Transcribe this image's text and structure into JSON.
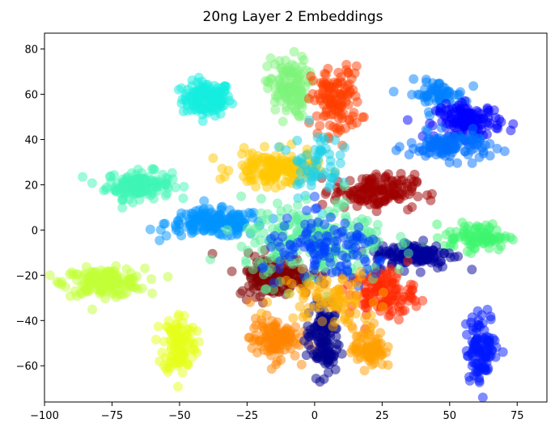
{
  "chart_data": {
    "type": "scatter",
    "title": "20ng Layer 2 Embeddings",
    "xlabel": "",
    "ylabel": "",
    "xlim": [
      -100,
      86
    ],
    "ylim": [
      -76,
      87
    ],
    "xticks": [
      -100,
      -75,
      -50,
      -25,
      0,
      25,
      50,
      75
    ],
    "yticks": [
      -60,
      -40,
      -20,
      0,
      20,
      40,
      60,
      80
    ],
    "grid": false,
    "legend": "none",
    "point_alpha": 0.5,
    "clusters": [
      {
        "color": "#13eee0",
        "center": [
          -40,
          58
        ],
        "spread": [
          6,
          5
        ],
        "n": 140
      },
      {
        "color": "#3df5b6",
        "center": [
          -65,
          20
        ],
        "spread": [
          8,
          4
        ],
        "n": 150
      },
      {
        "color": "#0094ff",
        "center": [
          -37,
          3
        ],
        "spread": [
          12,
          4
        ],
        "n": 170
      },
      {
        "color": "#c2ff36",
        "center": [
          -78,
          -23
        ],
        "spread": [
          10,
          4
        ],
        "n": 150
      },
      {
        "color": "#e5ff1a",
        "center": [
          -50,
          -50
        ],
        "spread": [
          4,
          9
        ],
        "n": 120
      },
      {
        "color": "#7ef37a",
        "center": [
          -10,
          63
        ],
        "spread": [
          5,
          9
        ],
        "n": 120
      },
      {
        "color": "#ff3d00",
        "center": [
          8,
          57
        ],
        "spread": [
          6,
          10
        ],
        "n": 120
      },
      {
        "color": "#0080ff",
        "center": [
          45,
          60
        ],
        "spread": [
          7,
          4
        ],
        "n": 60
      },
      {
        "color": "#0000ff",
        "center": [
          57,
          48
        ],
        "spread": [
          8,
          5
        ],
        "n": 140
      },
      {
        "color": "#0070ff",
        "center": [
          50,
          37
        ],
        "spread": [
          10,
          4
        ],
        "n": 110
      },
      {
        "color": "#ffc800",
        "center": [
          -15,
          27
        ],
        "spread": [
          10,
          5
        ],
        "n": 150
      },
      {
        "color": "#a00000",
        "center": [
          22,
          17
        ],
        "spread": [
          10,
          5
        ],
        "n": 150
      },
      {
        "color": "#3df56e",
        "center": [
          60,
          -3
        ],
        "spread": [
          8,
          4
        ],
        "n": 90
      },
      {
        "color": "#00009c",
        "center": [
          37,
          -11
        ],
        "spread": [
          10,
          4
        ],
        "n": 130
      },
      {
        "color": "#7f0000",
        "center": [
          -15,
          -20
        ],
        "spread": [
          9,
          6
        ],
        "n": 160
      },
      {
        "color": "#ff2800",
        "center": [
          25,
          -28
        ],
        "spread": [
          8,
          7
        ],
        "n": 130
      },
      {
        "color": "#ff8400",
        "center": [
          -15,
          -48
        ],
        "spread": [
          6,
          6
        ],
        "n": 110
      },
      {
        "color": "#00008b",
        "center": [
          3,
          -48
        ],
        "spread": [
          4,
          11
        ],
        "n": 130
      },
      {
        "color": "#ff9f00",
        "center": [
          20,
          -52
        ],
        "spread": [
          4,
          6
        ],
        "n": 80
      },
      {
        "color": "#0018ff",
        "center": [
          62,
          -52
        ],
        "spread": [
          4,
          10
        ],
        "n": 110
      },
      {
        "color": "#19d0e6",
        "center": [
          0,
          30
        ],
        "spread": [
          6,
          10
        ],
        "n": 60
      },
      {
        "color": "#5af09b",
        "center": [
          0,
          -5
        ],
        "spread": [
          18,
          12
        ],
        "n": 220
      },
      {
        "color": "#0040ff",
        "center": [
          5,
          -10
        ],
        "spread": [
          16,
          10
        ],
        "n": 120
      },
      {
        "color": "#ffb000",
        "center": [
          5,
          -30
        ],
        "spread": [
          12,
          8
        ],
        "n": 80
      }
    ]
  }
}
